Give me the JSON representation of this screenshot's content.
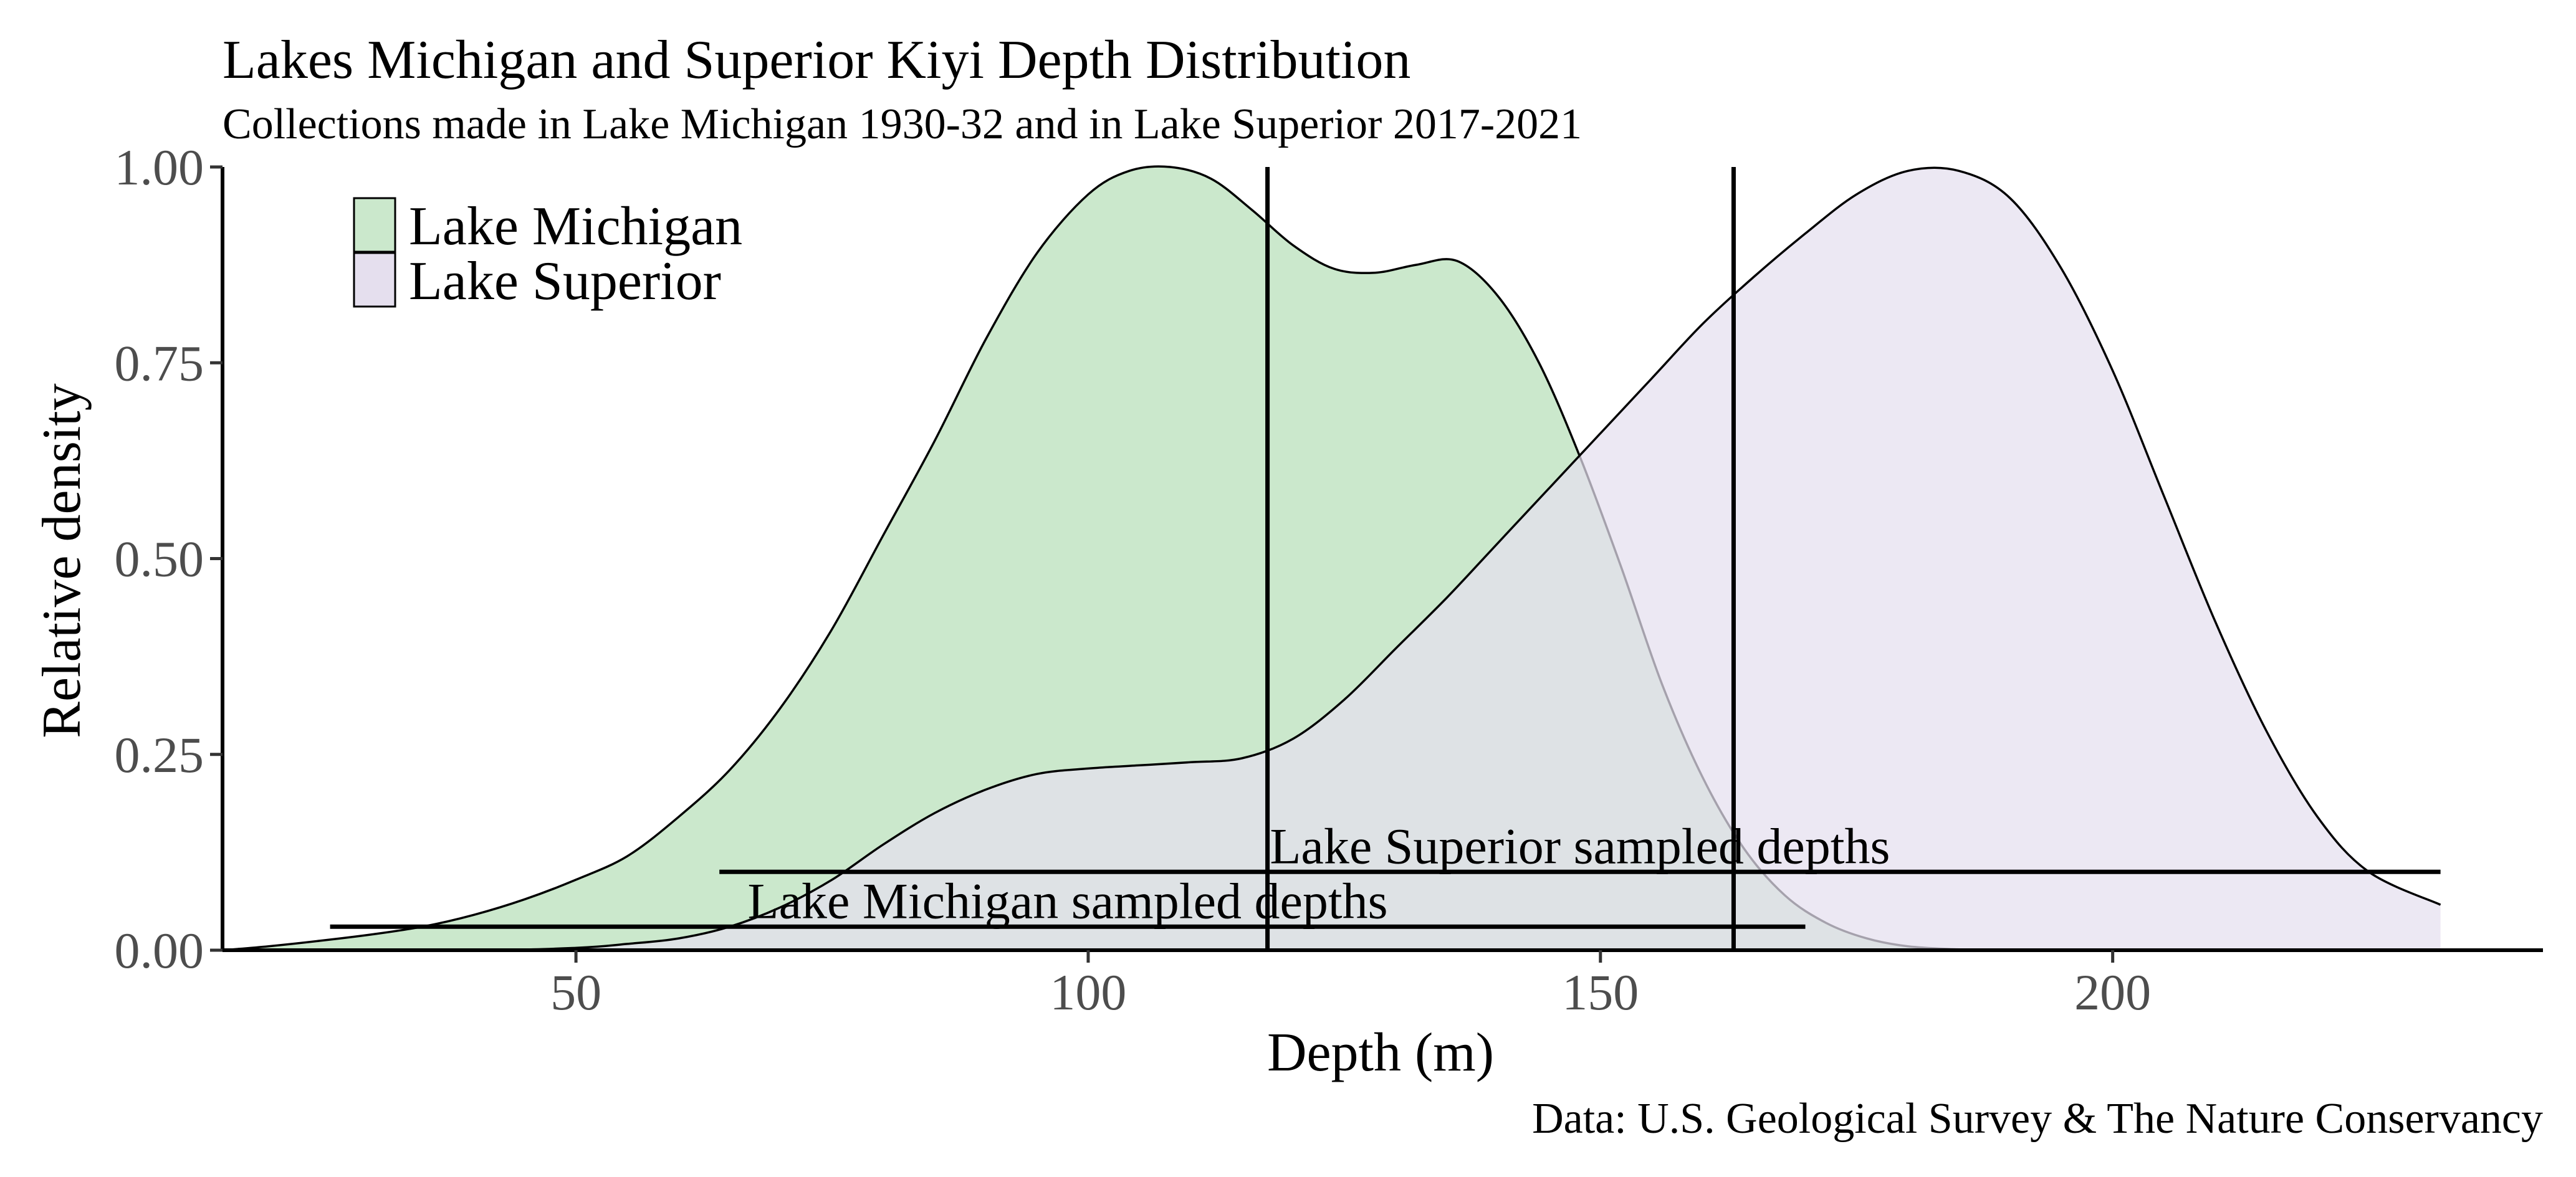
{
  "chart_data": {
    "type": "area",
    "title": "Lakes Michigan and Superior Kiyi Depth Distribution",
    "subtitle": "Collections made in Lake Michigan 1930-32 and in Lake Superior 2017-2021",
    "xlabel": "Depth (m)",
    "ylabel": "Relative density",
    "caption": "Data: U.S. Geological Survey & The Nature Conservancy",
    "xlim": [
      15.5,
      242
    ],
    "ylim": [
      0,
      1
    ],
    "x_ticks": [
      50,
      100,
      150,
      200
    ],
    "x_tick_labels": [
      "50",
      "100",
      "150",
      "200"
    ],
    "y_ticks": [
      0,
      0.25,
      0.5,
      0.75,
      1
    ],
    "y_tick_labels": [
      "0.00",
      "0.25",
      "0.50",
      "0.75",
      "1.00"
    ],
    "grid": false,
    "legend_position": "top-left",
    "series": [
      {
        "name": "Lake Michigan",
        "fill": "#cbe8cc",
        "x": [
          15.5,
          20,
          25,
          30,
          35,
          40,
          45,
          50,
          55,
          60,
          65,
          70,
          75,
          80,
          85,
          90,
          95,
          100,
          104,
          108,
          112,
          116,
          120,
          124,
          128,
          132,
          136,
          140,
          144,
          148,
          152,
          156,
          160,
          164,
          168,
          172,
          176,
          180,
          185,
          190
        ],
        "values": [
          0.0,
          0.005,
          0.012,
          0.02,
          0.03,
          0.045,
          0.065,
          0.09,
          0.12,
          0.17,
          0.23,
          0.31,
          0.41,
          0.53,
          0.65,
          0.78,
          0.89,
          0.965,
          0.995,
          1.0,
          0.985,
          0.945,
          0.9,
          0.87,
          0.865,
          0.875,
          0.88,
          0.835,
          0.75,
          0.63,
          0.49,
          0.34,
          0.22,
          0.13,
          0.07,
          0.035,
          0.015,
          0.005,
          0.001,
          0.0
        ]
      },
      {
        "name": "Lake Superior",
        "fill": "#e5dfee",
        "x": [
          15.5,
          40,
          50,
          55,
          60,
          65,
          70,
          75,
          80,
          85,
          90,
          95,
          100,
          105,
          110,
          115,
          120,
          125,
          130,
          135,
          140,
          145,
          150,
          155,
          160,
          165,
          170,
          175,
          180,
          185,
          190,
          195,
          200,
          205,
          210,
          215,
          220,
          225,
          232
        ],
        "values": [
          0.0,
          0.0,
          0.003,
          0.008,
          0.015,
          0.03,
          0.055,
          0.09,
          0.135,
          0.175,
          0.205,
          0.225,
          0.232,
          0.236,
          0.24,
          0.245,
          0.27,
          0.32,
          0.385,
          0.45,
          0.52,
          0.59,
          0.66,
          0.73,
          0.8,
          0.86,
          0.915,
          0.965,
          0.995,
          0.995,
          0.96,
          0.87,
          0.74,
          0.58,
          0.42,
          0.28,
          0.17,
          0.1,
          0.058
        ]
      }
    ],
    "vertical_lines": [
      {
        "x": 117.5
      },
      {
        "x": 163
      }
    ],
    "ranges": [
      {
        "label": "Lake Michigan sampled depths",
        "x_start": 26,
        "x_end": 170,
        "y": 0.03
      },
      {
        "label": "Lake Superior sampled depths",
        "x_start": 64,
        "x_end": 232,
        "y": 0.1
      }
    ]
  }
}
